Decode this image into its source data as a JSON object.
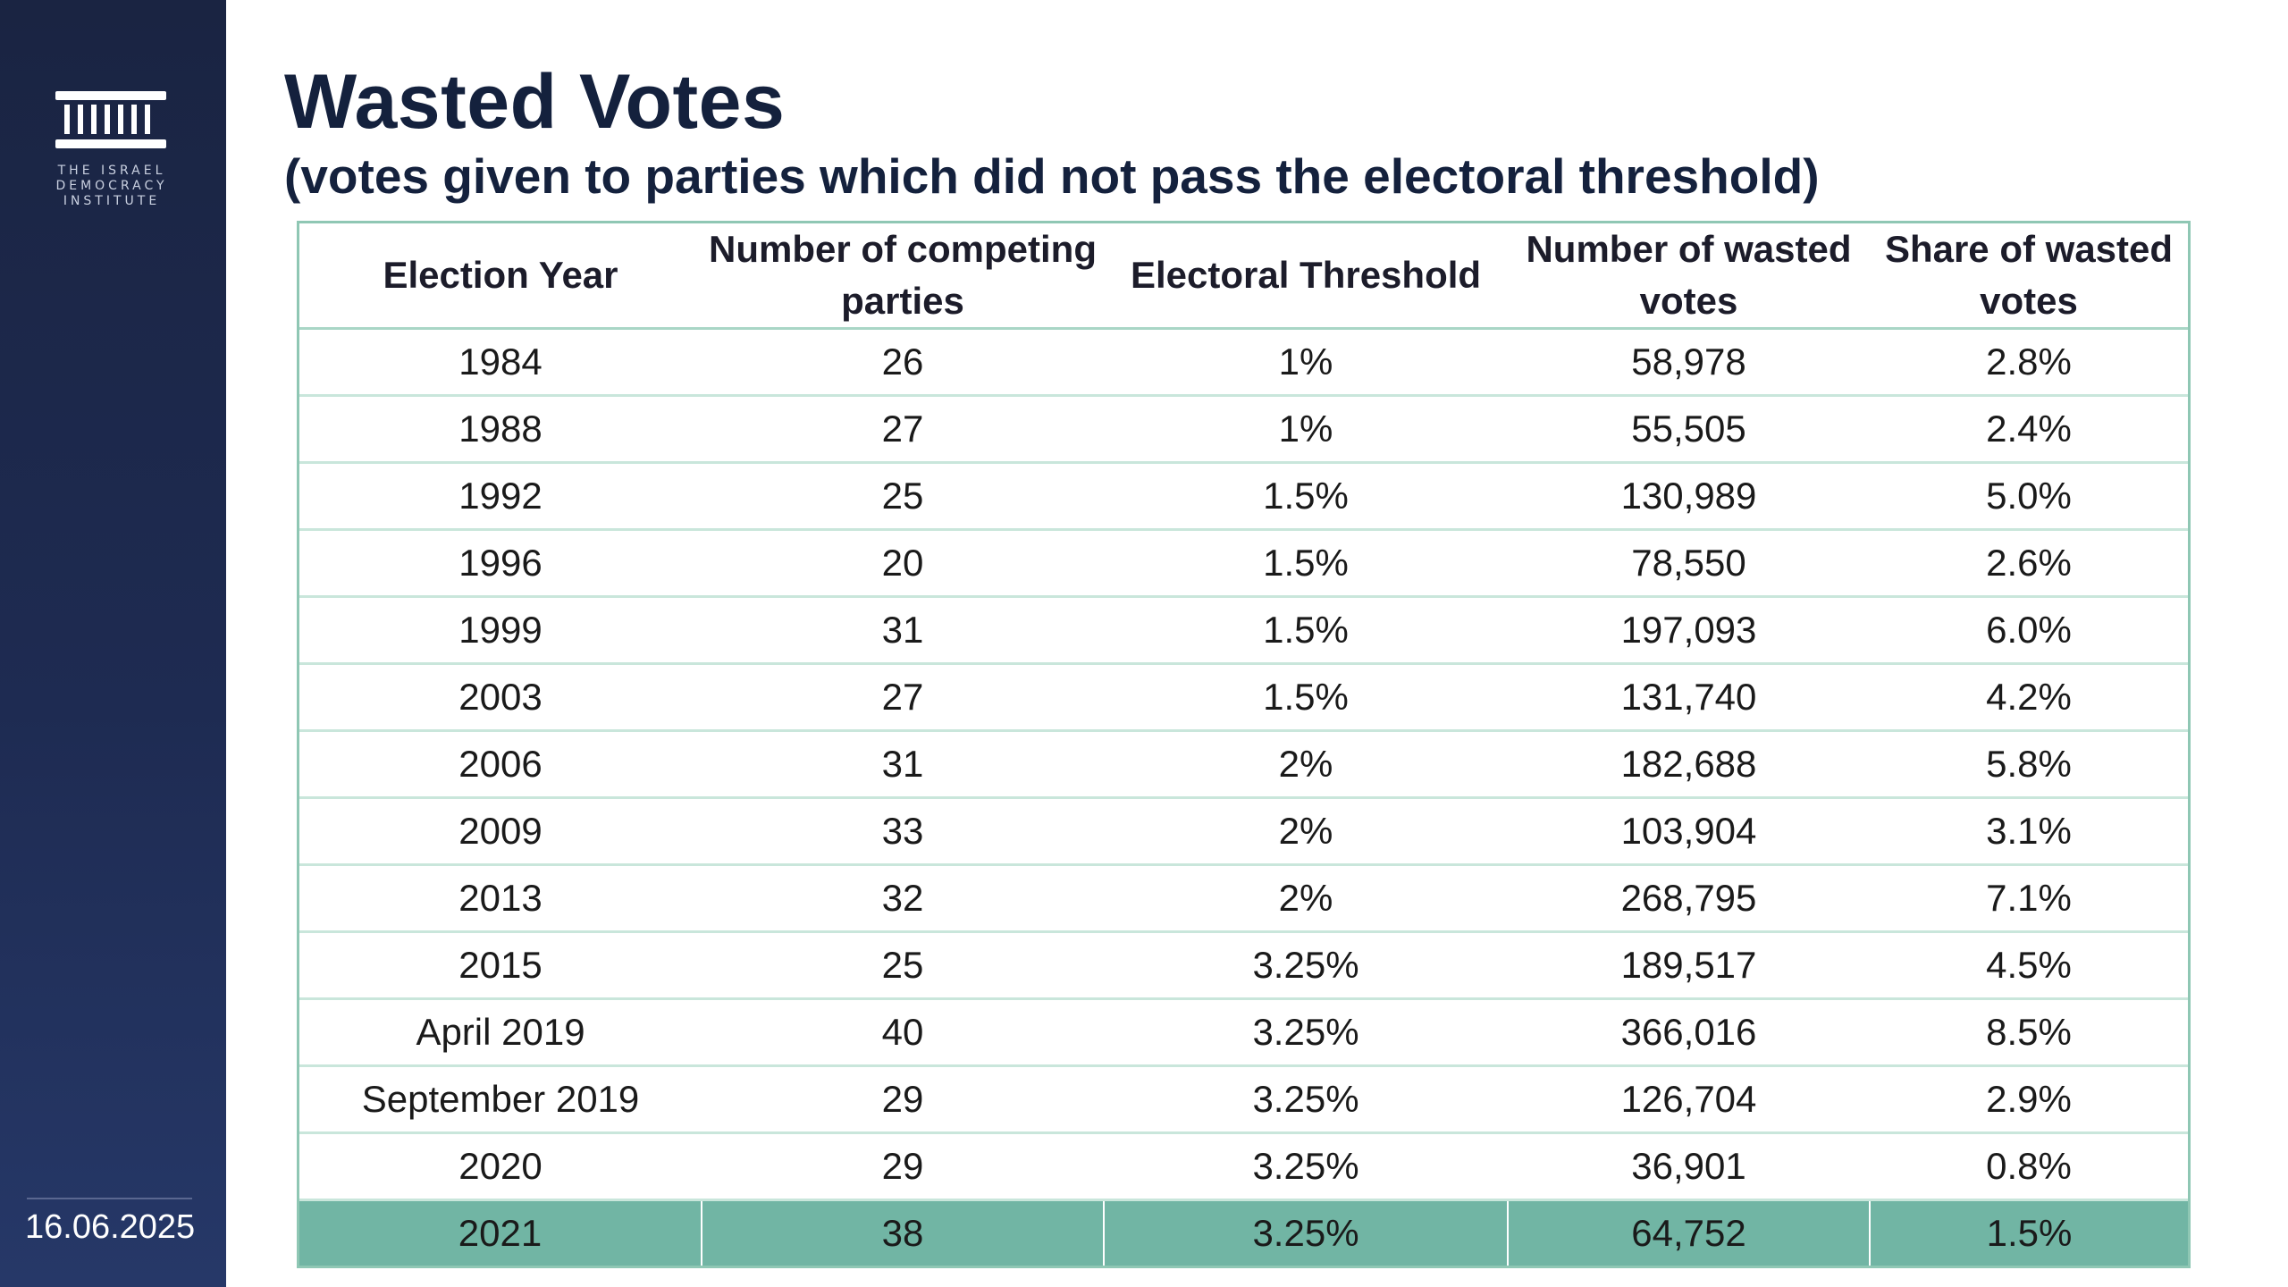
{
  "sidebar": {
    "logo_lines": [
      "The Israel",
      "Democracy",
      "Institute"
    ],
    "date": "16.06.2025"
  },
  "title": "Wasted Votes",
  "subtitle": "(votes given to parties which did not pass the electoral threshold)",
  "table": {
    "headers": [
      "Election Year",
      "Number of competing parties",
      "Electoral Threshold",
      "Number of wasted votes",
      "Share of wasted votes"
    ],
    "rows": [
      [
        "1984",
        "26",
        "1%",
        "58,978",
        "2.8%"
      ],
      [
        "1988",
        "27",
        "1%",
        "55,505",
        "2.4%"
      ],
      [
        "1992",
        "25",
        "1.5%",
        "130,989",
        "5.0%"
      ],
      [
        "1996",
        "20",
        "1.5%",
        "78,550",
        "2.6%"
      ],
      [
        "1999",
        "31",
        "1.5%",
        "197,093",
        "6.0%"
      ],
      [
        "2003",
        "27",
        "1.5%",
        "131,740",
        "4.2%"
      ],
      [
        "2006",
        "31",
        "2%",
        "182,688",
        "5.8%"
      ],
      [
        "2009",
        "33",
        "2%",
        "103,904",
        "3.1%"
      ],
      [
        "2013",
        "32",
        "2%",
        "268,795",
        "7.1%"
      ],
      [
        "2015",
        "25",
        "3.25%",
        "189,517",
        "4.5%"
      ],
      [
        "April 2019",
        "40",
        "3.25%",
        "366,016",
        "8.5%"
      ],
      [
        "September 2019",
        "29",
        "3.25%",
        "126,704",
        "2.9%"
      ],
      [
        "2020",
        "29",
        "3.25%",
        "36,901",
        "0.8%"
      ],
      [
        "2021",
        "38",
        "3.25%",
        "64,752",
        "1.5%"
      ]
    ],
    "highlighted_row": "2021"
  },
  "colors": {
    "sidebar": "#1e2b52",
    "title": "#14213d",
    "table_border": "#8fc7b4",
    "highlight_row": "#71b5a4"
  }
}
